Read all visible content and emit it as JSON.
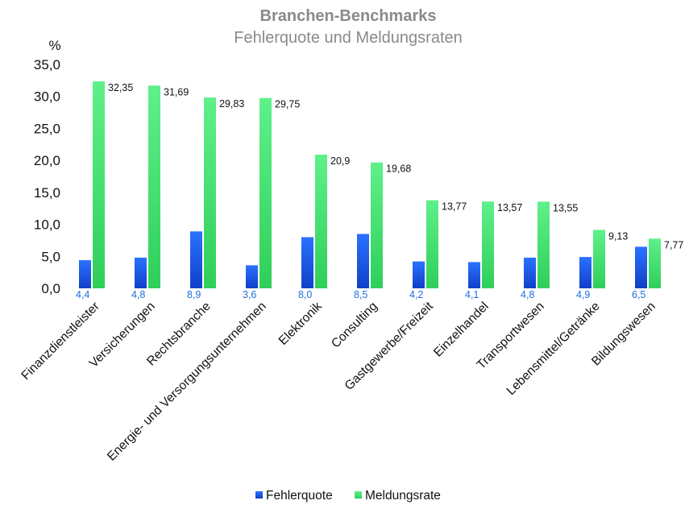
{
  "chart_data": {
    "type": "bar",
    "title": "Branchen-Benchmarks",
    "subtitle": "Fehlerquote und Meldungsraten",
    "ylabel": "%",
    "ylim": [
      0,
      35
    ],
    "yticks": [
      "0,0",
      "5,0",
      "10,0",
      "15,0",
      "20,0",
      "25,0",
      "30,0",
      "35,0"
    ],
    "grid": false,
    "legend_position": "bottom",
    "categories": [
      "Finanzdienstleister",
      "Versicherungen",
      "Rechtsbranche",
      "Energie- und Versorgungsunternehmen",
      "Elektronik",
      "Consulting",
      "Gastgewerbe/Freizeit",
      "Einzelhandel",
      "Transportwesen",
      "Lebensmittel/Getränke",
      "Bildungswesen"
    ],
    "series": [
      {
        "name": "Fehlerquote",
        "color": "#1f5fe8",
        "values": [
          4.4,
          4.8,
          8.9,
          3.6,
          8.0,
          8.5,
          4.2,
          4.1,
          4.8,
          4.9,
          6.5
        ],
        "labels": [
          "4,4",
          "4,8",
          "8,9",
          "3,6",
          "8,0",
          "8,5",
          "4,2",
          "4,1",
          "4,8",
          "4,9",
          "6,5"
        ]
      },
      {
        "name": "Meldungsrate",
        "color": "#3ddc6a",
        "values": [
          32.35,
          31.69,
          29.83,
          29.75,
          20.9,
          19.68,
          13.77,
          13.57,
          13.55,
          9.13,
          7.77
        ],
        "labels": [
          "32,35",
          "31,69",
          "29,83",
          "29,75",
          "20,9",
          "19,68",
          "13,77",
          "13,57",
          "13,55",
          "9,13",
          "7,77"
        ]
      }
    ]
  }
}
